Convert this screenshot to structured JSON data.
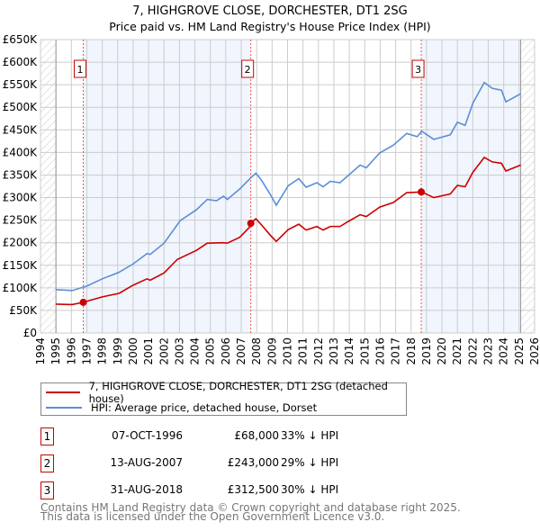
{
  "chart_data": {
    "type": "line",
    "title": "7, HIGHGROVE CLOSE, DORCHESTER, DT1 2SG",
    "subtitle": "Price paid vs. HM Land Registry's House Price Index (HPI)",
    "xlim": [
      1994,
      2026
    ],
    "ylim": [
      0,
      650000
    ],
    "x_ticks": [
      "1994",
      "1995",
      "1996",
      "1997",
      "1998",
      "1999",
      "2000",
      "2001",
      "2002",
      "2003",
      "2004",
      "2005",
      "2006",
      "2007",
      "2008",
      "2009",
      "2010",
      "2011",
      "2012",
      "2013",
      "2014",
      "2015",
      "2016",
      "2017",
      "2018",
      "2019",
      "2020",
      "2021",
      "2022",
      "2023",
      "2024",
      "2025",
      "2026"
    ],
    "y_ticks": [
      {
        "v": 0,
        "label": "£0"
      },
      {
        "v": 50000,
        "label": "£50K"
      },
      {
        "v": 100000,
        "label": "£100K"
      },
      {
        "v": 150000,
        "label": "£150K"
      },
      {
        "v": 200000,
        "label": "£200K"
      },
      {
        "v": 250000,
        "label": "£250K"
      },
      {
        "v": 300000,
        "label": "£300K"
      },
      {
        "v": 350000,
        "label": "£350K"
      },
      {
        "v": 400000,
        "label": "£400K"
      },
      {
        "v": 450000,
        "label": "£450K"
      },
      {
        "v": 500000,
        "label": "£500K"
      },
      {
        "v": 550000,
        "label": "£550K"
      },
      {
        "v": 600000,
        "label": "£600K"
      },
      {
        "v": 650000,
        "label": "£650K"
      }
    ],
    "grid": true,
    "data_range": [
      1995,
      2025.1
    ],
    "series": [
      {
        "name": "7, HIGHGROVE CLOSE, DORCHESTER, DT1 2SG (detached house)",
        "color": "#cc0000",
        "points": [
          [
            1995,
            64
          ],
          [
            1996.05,
            63
          ],
          [
            1996.77,
            68
          ],
          [
            1998,
            80
          ],
          [
            1999.1,
            88
          ],
          [
            2000,
            106
          ],
          [
            2000.9,
            120
          ],
          [
            2001.1,
            117
          ],
          [
            2002,
            133
          ],
          [
            2002.86,
            163
          ],
          [
            2004.1,
            183
          ],
          [
            2004.8,
            199
          ],
          [
            2005.85,
            200
          ],
          [
            2006.1,
            199
          ],
          [
            2006.9,
            212
          ],
          [
            2007.5,
            233
          ],
          [
            2007.6,
            243
          ],
          [
            2007.95,
            253
          ],
          [
            2008.3,
            240
          ],
          [
            2008.9,
            216
          ],
          [
            2009.27,
            203
          ],
          [
            2010.04,
            229
          ],
          [
            2010.73,
            241
          ],
          [
            2011.2,
            228
          ],
          [
            2011.9,
            236
          ],
          [
            2012.3,
            228
          ],
          [
            2012.77,
            236
          ],
          [
            2013.4,
            236
          ],
          [
            2013.93,
            247
          ],
          [
            2014.7,
            262
          ],
          [
            2015.1,
            258
          ],
          [
            2015.97,
            279
          ],
          [
            2016.85,
            289
          ],
          [
            2017.72,
            311
          ],
          [
            2018.69,
            312.5
          ],
          [
            2019.47,
            300
          ],
          [
            2020.54,
            308
          ],
          [
            2021.0,
            327
          ],
          [
            2021.5,
            324
          ],
          [
            2022.0,
            356
          ],
          [
            2022.74,
            389
          ],
          [
            2023.26,
            379
          ],
          [
            2023.85,
            376
          ],
          [
            2024.14,
            359
          ],
          [
            2025.1,
            372
          ]
        ]
      },
      {
        "name": "HPI: Average price, detached house, Dorset",
        "color": "#5b8fd6",
        "points": [
          [
            1995,
            96
          ],
          [
            1996.05,
            94
          ],
          [
            1997.0,
            104
          ],
          [
            1998,
            120
          ],
          [
            1999.06,
            134
          ],
          [
            2000,
            153
          ],
          [
            2000.9,
            176
          ],
          [
            2001.1,
            174
          ],
          [
            2002,
            199
          ],
          [
            2003.05,
            249
          ],
          [
            2004.1,
            273
          ],
          [
            2004.8,
            296
          ],
          [
            2005.4,
            293
          ],
          [
            2005.85,
            303
          ],
          [
            2006.1,
            296
          ],
          [
            2006.9,
            319
          ],
          [
            2007.6,
            343
          ],
          [
            2007.95,
            354
          ],
          [
            2008.3,
            339
          ],
          [
            2008.9,
            306
          ],
          [
            2009.27,
            283
          ],
          [
            2010.04,
            326
          ],
          [
            2010.73,
            342
          ],
          [
            2011.2,
            323
          ],
          [
            2011.9,
            333
          ],
          [
            2012.3,
            324
          ],
          [
            2012.77,
            336
          ],
          [
            2013.4,
            333
          ],
          [
            2013.93,
            349
          ],
          [
            2014.7,
            372
          ],
          [
            2015.1,
            366
          ],
          [
            2015.97,
            399
          ],
          [
            2016.85,
            416
          ],
          [
            2017.72,
            442
          ],
          [
            2018.4,
            435
          ],
          [
            2018.69,
            447
          ],
          [
            2019.47,
            429
          ],
          [
            2020.54,
            439
          ],
          [
            2021.0,
            467
          ],
          [
            2021.5,
            460
          ],
          [
            2022.0,
            509
          ],
          [
            2022.74,
            555
          ],
          [
            2023.26,
            542
          ],
          [
            2023.85,
            538
          ],
          [
            2024.14,
            512
          ],
          [
            2025.1,
            530
          ]
        ]
      }
    ],
    "sales": [
      {
        "n": "1",
        "x": 1996.77,
        "value": 68000
      },
      {
        "n": "2",
        "x": 2007.62,
        "value": 243000
      },
      {
        "n": "3",
        "x": 2018.66,
        "value": 312500
      }
    ]
  },
  "legend": {
    "property": "7, HIGHGROVE CLOSE, DORCHESTER, DT1 2SG (detached house)",
    "hpi": "HPI: Average price, detached house, Dorset"
  },
  "transactions": [
    {
      "n": "1",
      "date": "07-OCT-1996",
      "price": "£68,000",
      "hpi": "33% ↓ HPI"
    },
    {
      "n": "2",
      "date": "13-AUG-2007",
      "price": "£243,000",
      "hpi": "29% ↓ HPI"
    },
    {
      "n": "3",
      "date": "31-AUG-2018",
      "price": "£312,500",
      "hpi": "30% ↓ HPI"
    }
  ],
  "footer": {
    "line1": "Contains HM Land Registry data © Crown copyright and database right 2025.",
    "line2": "This data is licensed under the Open Government Licence v3.0."
  }
}
